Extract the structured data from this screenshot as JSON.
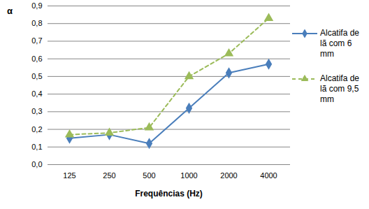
{
  "chart_data": {
    "type": "line",
    "y_label": "α",
    "x_label": "Frequências (Hz)",
    "categories": [
      "125",
      "250",
      "500",
      "1000",
      "2000",
      "4000"
    ],
    "series": [
      {
        "name": "Alcatifa de lã com 6 mm",
        "color": "#4a7ebb",
        "marker": "diamond",
        "line_style": "solid",
        "values": [
          0.15,
          0.17,
          0.12,
          0.32,
          0.52,
          0.57
        ]
      },
      {
        "name": "Alcatifa de lã com 9,5 mm",
        "color": "#9bbb59",
        "marker": "triangle",
        "line_style": "dashed",
        "values": [
          0.17,
          0.18,
          0.21,
          0.5,
          0.63,
          0.83
        ]
      }
    ],
    "ylim": [
      0,
      0.9
    ],
    "yticks": [
      {
        "value": 0,
        "label": "0,0"
      },
      {
        "value": 0.1,
        "label": "0,1"
      },
      {
        "value": 0.2,
        "label": "0,2"
      },
      {
        "value": 0.3,
        "label": "0,3"
      },
      {
        "value": 0.4,
        "label": "0,4"
      },
      {
        "value": 0.5,
        "label": "0,5"
      },
      {
        "value": 0.6,
        "label": "0,6"
      },
      {
        "value": 0.7,
        "label": "0,7"
      },
      {
        "value": 0.8,
        "label": "0,8"
      },
      {
        "value": 0.9,
        "label": "0,9"
      }
    ],
    "grid": true,
    "legend": "right"
  }
}
